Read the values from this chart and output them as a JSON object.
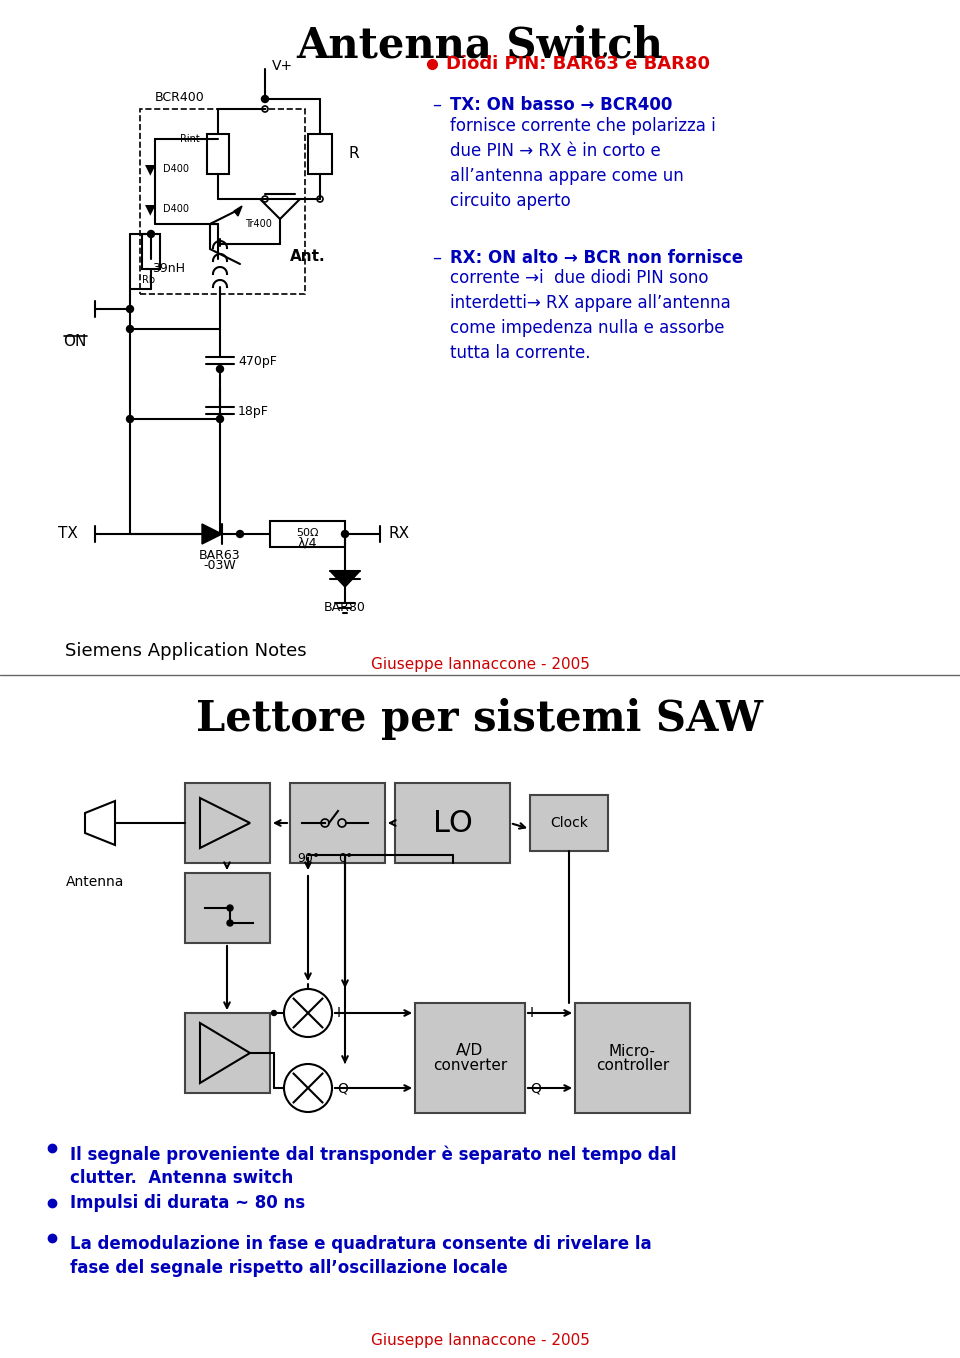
{
  "slide1_title": "Antenna Switch",
  "slide1_bullet_red": "Diodi PIN: BAR63 e BAR80",
  "slide1_bullet1_header": "TX: ON basso → BCR400",
  "slide1_bullet1_body": "fornisce corrente che polarizza i\ndue PIN → RX è in corto e\nall’antenna appare come un\ncircuito aperto",
  "slide1_bullet2_header": "RX: ON alto → BCR non fornisce",
  "slide1_bullet2_body": "corrente →i  due diodi PIN sono\ninterdetti→ RX appare all’antenna\ncome impedenza nulla e assorbe\ntutta la corrente.",
  "slide1_footer_left": "Siemens Application Notes",
  "slide2_title": "Lettore per sistemi SAW",
  "slide2_bullet1": "Il segnale proveniente dal transponder è separato nel tempo dal\nclutter.  Antenna switch",
  "slide2_bullet2": "Impulsi di durata ~ 80 ns",
  "slide2_bullet3": "La demodulazione in fase e quadratura consente di rivelare la\nfase del segnale rispetto all’oscillazione locale",
  "footer_text": "Giuseppe Iannaccone - 2005",
  "bg_color": "#ffffff",
  "title_color": "#000000",
  "red_color": "#dd0000",
  "blue_color": "#0000bb",
  "gray_box": "#c8c8c8",
  "divider_color": "#666666",
  "footer_color": "#cc0000"
}
